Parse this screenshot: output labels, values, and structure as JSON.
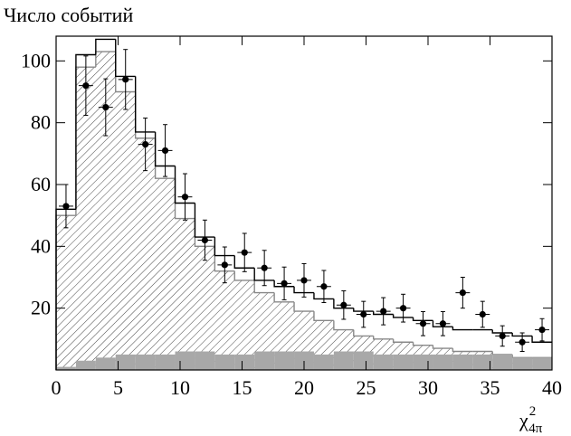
{
  "chart_data": {
    "type": "histogram",
    "ylabel": "Число событий",
    "xlabel": {
      "base": "χ",
      "sup": "2",
      "sub": "4π"
    },
    "bins": [
      0,
      1.6,
      3.2,
      4.8,
      6.4,
      8,
      9.6,
      11.2,
      12.8,
      14.4,
      16,
      17.6,
      19.2,
      20.8,
      22.4,
      24,
      25.6,
      27.2,
      28.8,
      30.4,
      32,
      33.6,
      35.2,
      36.8,
      38.4,
      40
    ],
    "histograms": [
      {
        "style": "hatched",
        "color": "#888888",
        "values": [
          50,
          98,
          103,
          90,
          75,
          62,
          49,
          40,
          32,
          29,
          25,
          22,
          19,
          16,
          13,
          11,
          10,
          9,
          8,
          7,
          6,
          6,
          5,
          4,
          4
        ]
      },
      {
        "style": "filled",
        "color": "#a8a8a8",
        "values": [
          1,
          3,
          4,
          5,
          5,
          5,
          6,
          6,
          5,
          5,
          6,
          6,
          6,
          5,
          6,
          6,
          5,
          5,
          5,
          5,
          5,
          5,
          5,
          4,
          4
        ]
      },
      {
        "style": "outline",
        "color": "#000000",
        "values": [
          52,
          102,
          107,
          95,
          77,
          66,
          54,
          43,
          37,
          33,
          29,
          27,
          25,
          23,
          20,
          19,
          18,
          17,
          16,
          14,
          13,
          13,
          12,
          11,
          9
        ]
      }
    ],
    "points": {
      "color": "#000000",
      "values": [
        53,
        92,
        85,
        94,
        73,
        71,
        56,
        42,
        34,
        38,
        33,
        28,
        29,
        27,
        21,
        18,
        19,
        20,
        15,
        15,
        25,
        18,
        11,
        9,
        13
      ],
      "errors": [
        7,
        9.6,
        9.2,
        9.7,
        8.5,
        8.4,
        7.5,
        6.5,
        5.8,
        6.2,
        5.7,
        5.3,
        5.4,
        5.2,
        4.6,
        4.2,
        4.4,
        4.5,
        3.9,
        3.9,
        5,
        4.2,
        3.3,
        3,
        3.6
      ]
    },
    "xlim": [
      0,
      40
    ],
    "ylim": [
      0,
      108
    ],
    "xticks": [
      0,
      5,
      10,
      15,
      20,
      25,
      30,
      35,
      40
    ],
    "yticks": [
      20,
      40,
      60,
      80,
      100
    ]
  }
}
